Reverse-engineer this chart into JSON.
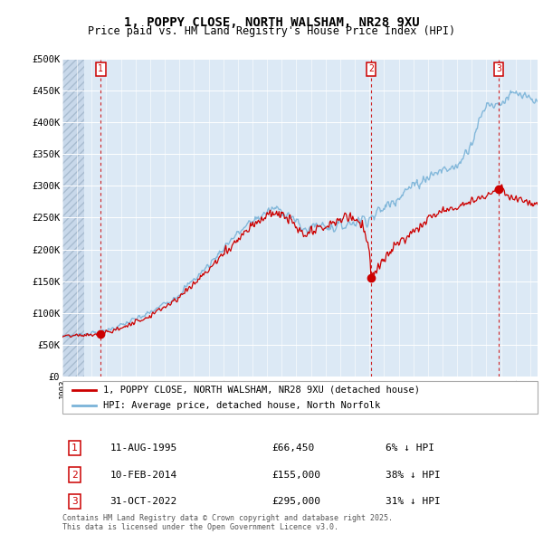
{
  "title_line1": "1, POPPY CLOSE, NORTH WALSHAM, NR28 9XU",
  "title_line2": "Price paid vs. HM Land Registry's House Price Index (HPI)",
  "ylim": [
    0,
    500000
  ],
  "yticks": [
    0,
    50000,
    100000,
    150000,
    200000,
    250000,
    300000,
    350000,
    400000,
    450000,
    500000
  ],
  "ytick_labels": [
    "£0",
    "£50K",
    "£100K",
    "£150K",
    "£200K",
    "£250K",
    "£300K",
    "£350K",
    "£400K",
    "£450K",
    "£500K"
  ],
  "background_color": "#dce9f5",
  "hatch_color": "#b8ccdf",
  "grid_color": "#ffffff",
  "sale_color": "#cc0000",
  "hpi_color": "#7ab3d8",
  "annotation_box_color": "#cc0000",
  "dashed_line_color": "#cc0000",
  "xlim_left": 1993.0,
  "xlim_right": 2025.5,
  "hatch_end": 1994.5,
  "transactions": [
    {
      "id": 1,
      "date_label": "11-AUG-1995",
      "date_num": 1995.61,
      "price": 66450,
      "pct": "6%"
    },
    {
      "id": 2,
      "date_label": "10-FEB-2014",
      "date_num": 2014.11,
      "price": 155000,
      "pct": "38%"
    },
    {
      "id": 3,
      "date_label": "31-OCT-2022",
      "date_num": 2022.83,
      "price": 295000,
      "pct": "31%"
    }
  ],
  "legend_label_red": "1, POPPY CLOSE, NORTH WALSHAM, NR28 9XU (detached house)",
  "legend_label_blue": "HPI: Average price, detached house, North Norfolk",
  "footer": "Contains HM Land Registry data © Crown copyright and database right 2025.\nThis data is licensed under the Open Government Licence v3.0.",
  "table_rows": [
    [
      1,
      "11-AUG-1995",
      "£66,450",
      "6% ↓ HPI"
    ],
    [
      2,
      "10-FEB-2014",
      "£155,000",
      "38% ↓ HPI"
    ],
    [
      3,
      "31-OCT-2022",
      "£295,000",
      "31% ↓ HPI"
    ]
  ],
  "fig_width": 6.0,
  "fig_height": 5.9,
  "dpi": 100
}
